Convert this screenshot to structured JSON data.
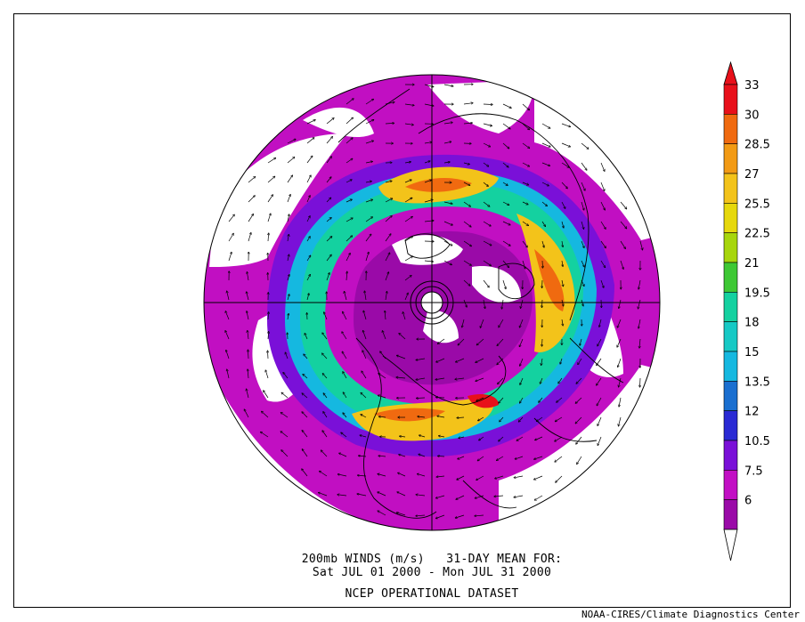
{
  "map": {
    "projection": "north-polar-stereographic",
    "field": "200mb vector wind speed",
    "features": [
      "coastlines",
      "country-boundaries",
      "wind-vectors",
      "filled-contours"
    ]
  },
  "captions": {
    "line1": "200mb WINDS (m/s)   31-DAY MEAN FOR:",
    "line2": "Sat JUL 01 2000 - Mon JUL 31 2000",
    "line3": "NCEP OPERATIONAL DATASET",
    "credit": "NOAA-CIRES/Climate Diagnostics Center"
  },
  "colorbar": {
    "levels": [
      "33",
      "30",
      "28.5",
      "27",
      "25.5",
      "22.5",
      "21",
      "19.5",
      "18",
      "15",
      "13.5",
      "12",
      "10.5",
      "7.5",
      "6"
    ],
    "colors": [
      "#e8101a",
      "#f06a10",
      "#f29a14",
      "#f3c31a",
      "#e6d80c",
      "#a7d60c",
      "#3ec834",
      "#14d1a0",
      "#16c9c5",
      "#15b8e0",
      "#1a6fd0",
      "#2a2ad4",
      "#7a10d8",
      "#c20fc4",
      "#9a0aa8"
    ]
  }
}
